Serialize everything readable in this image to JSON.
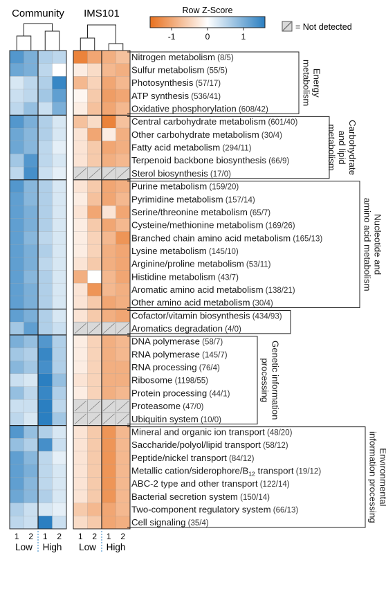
{
  "chart_data": {
    "type": "heatmap",
    "panels": [
      {
        "title": "Community",
        "columns": [
          "1",
          "2",
          "1",
          "2"
        ]
      },
      {
        "title": "IMS101",
        "columns": [
          "1",
          "2",
          "1",
          "2"
        ]
      }
    ],
    "group_labels": [
      "Low",
      "High"
    ],
    "legend": {
      "title": "Row Z-Score",
      "ticks": [
        "-1",
        "0",
        "1"
      ],
      "not_detected_label": "= Not detected",
      "low_color": "#e8711f",
      "mid_color": "#ffffff",
      "high_color": "#2b7fc1"
    },
    "groups": [
      {
        "label_lines": [
          "Energy",
          "metabolism"
        ],
        "rows": [
          0,
          4
        ]
      },
      {
        "label_lines": [
          "Carbohydrate",
          "and lipid",
          "metabolism"
        ],
        "rows": [
          5,
          9
        ]
      },
      {
        "label_lines": [
          "Nucleotide and",
          "amino acid metabolism"
        ],
        "rows": [
          10,
          19
        ]
      },
      {
        "label_lines": [],
        "rows": [
          20,
          21
        ]
      },
      {
        "label_lines": [
          "Genetic information",
          "processing"
        ],
        "rows": [
          22,
          28
        ]
      },
      {
        "label_lines": [
          "Environmental",
          "information processing"
        ],
        "rows": [
          29,
          36
        ]
      }
    ],
    "rows": [
      {
        "name": "Nitrogen metabolism",
        "count": "(8/5)",
        "community": [
          1.3,
          1.0,
          0.6,
          0.5
        ],
        "ims101": [
          -1.4,
          -1.0,
          -0.9,
          -0.7
        ]
      },
      {
        "name": "Sulfur metabolism",
        "count": "(55/5)",
        "community": [
          1.1,
          1.0,
          0.5,
          0.0
        ],
        "ims101": [
          -0.2,
          -0.4,
          -0.8,
          -0.9
        ]
      },
      {
        "name": "Photosynthesis",
        "count": "(57/17)",
        "community": [
          0.3,
          0.5,
          0.6,
          1.5
        ],
        "ims101": [
          -0.8,
          -0.5,
          -1.0,
          -0.8
        ]
      },
      {
        "name": "ATP synthesis",
        "count": "(536/41)",
        "community": [
          0.4,
          0.5,
          0.7,
          1.2
        ],
        "ims101": [
          -0.1,
          -0.6,
          -1.1,
          -1.0
        ]
      },
      {
        "name": "Oxidative phosphorylation",
        "count": "(608/42)",
        "community": [
          0.5,
          0.8,
          0.4,
          1.0
        ],
        "ims101": [
          -0.2,
          -0.7,
          -1.0,
          -0.8
        ]
      },
      {
        "name": "Central carbohydrate metabolism",
        "count": "(601/40)",
        "community": [
          1.3,
          1.0,
          0.6,
          0.3
        ],
        "ims101": [
          -0.7,
          -0.4,
          -1.4,
          -0.7
        ]
      },
      {
        "name": "Other carbohydrate metabolism",
        "count": "(30/4)",
        "community": [
          1.1,
          0.9,
          0.6,
          0.3
        ],
        "ims101": [
          -0.3,
          -1.0,
          -0.2,
          -0.9
        ]
      },
      {
        "name": "Fatty acid metabolism",
        "count": "(294/11)",
        "community": [
          1.1,
          0.9,
          0.5,
          0.2
        ],
        "ims101": [
          -0.3,
          -0.6,
          -1.0,
          -0.9
        ]
      },
      {
        "name": "Terpenoid backbone biosynthesis",
        "count": "(66/9)",
        "community": [
          0.7,
          1.3,
          0.5,
          0.3
        ],
        "ims101": [
          -0.3,
          -0.6,
          -0.9,
          -0.8
        ]
      },
      {
        "name": "Sterol biosynthesis",
        "count": "(17/0)",
        "community": [
          0.5,
          1.4,
          0.4,
          0.2
        ],
        "ims101": [
          null,
          null,
          null,
          null
        ]
      },
      {
        "name": "Purine metabolism",
        "count": "(159/20)",
        "community": [
          1.3,
          0.9,
          0.6,
          0.3
        ],
        "ims101": [
          -0.3,
          -0.6,
          -1.0,
          -0.9
        ]
      },
      {
        "name": "Pyrimidine metabolism",
        "count": "(157/14)",
        "community": [
          1.2,
          0.9,
          0.6,
          0.3
        ],
        "ims101": [
          -0.2,
          -0.7,
          -1.0,
          -0.8
        ]
      },
      {
        "name": "Serine/threonine metabolism",
        "count": "(65/7)",
        "community": [
          1.2,
          1.0,
          0.6,
          0.3
        ],
        "ims101": [
          -0.3,
          -1.0,
          -0.3,
          -1.0
        ]
      },
      {
        "name": "Cysteine/methionine metabolism",
        "count": "(169/26)",
        "community": [
          1.2,
          1.0,
          0.6,
          0.3
        ],
        "ims101": [
          -0.2,
          -0.6,
          -1.0,
          -0.8
        ]
      },
      {
        "name": "Branched chain amino acid metabolism",
        "count": "(165/13)",
        "community": [
          1.2,
          0.9,
          0.5,
          0.3
        ],
        "ims101": [
          -0.2,
          -0.5,
          -0.8,
          -1.2
        ]
      },
      {
        "name": "Lysine metabolism",
        "count": "(145/10)",
        "community": [
          1.2,
          1.0,
          0.6,
          0.3
        ],
        "ims101": [
          -0.2,
          -0.5,
          -0.9,
          -1.0
        ]
      },
      {
        "name": "Arginine/proline metabolism",
        "count": "(53/11)",
        "community": [
          1.2,
          1.0,
          0.5,
          0.3
        ],
        "ims101": [
          -0.3,
          -0.6,
          -0.9,
          -1.0
        ]
      },
      {
        "name": "Histidine metabolism",
        "count": "(43/7)",
        "community": [
          1.2,
          0.9,
          0.6,
          0.3
        ],
        "ims101": [
          -0.9,
          0.0,
          -0.8,
          -1.0
        ]
      },
      {
        "name": "Aromatic amino acid metabolism",
        "count": "(138/21)",
        "community": [
          1.2,
          1.0,
          0.6,
          0.3
        ],
        "ims101": [
          -0.3,
          -1.2,
          -0.8,
          -0.9
        ]
      },
      {
        "name": "Other amino acid metabolism",
        "count": "(30/4)",
        "community": [
          1.2,
          1.0,
          0.6,
          0.3
        ],
        "ims101": [
          -0.3,
          -0.6,
          -1.0,
          -0.9
        ]
      },
      {
        "name": "Cofactor/vitamin biosynthesis",
        "count": "(434/93)",
        "community": [
          1.2,
          1.0,
          0.6,
          0.3
        ],
        "ims101": [
          -0.3,
          -0.6,
          -0.9,
          -1.0
        ]
      },
      {
        "name": "Aromatics degradation",
        "count": "(4/0)",
        "community": [
          0.7,
          1.2,
          0.6,
          0.4
        ],
        "ims101": [
          null,
          null,
          null,
          null
        ]
      },
      {
        "name": "DNA polymerase",
        "count": "(58/7)",
        "community": [
          1.0,
          0.8,
          1.3,
          0.6
        ],
        "ims101": [
          -0.2,
          -0.5,
          -0.9,
          -0.8
        ]
      },
      {
        "name": "RNA polymerase",
        "count": "(145/7)",
        "community": [
          0.7,
          0.6,
          1.5,
          0.6
        ],
        "ims101": [
          -0.2,
          -0.5,
          -0.9,
          -0.8
        ]
      },
      {
        "name": "RNA processing",
        "count": "(76/4)",
        "community": [
          0.9,
          0.7,
          1.4,
          0.6
        ],
        "ims101": [
          -0.2,
          -0.5,
          -0.9,
          -0.9
        ]
      },
      {
        "name": "Ribosome",
        "count": "(1198/55)",
        "community": [
          0.4,
          0.3,
          1.6,
          0.8
        ],
        "ims101": [
          -0.3,
          -0.5,
          -0.9,
          -0.9
        ]
      },
      {
        "name": "Protein processing",
        "count": "(44/1)",
        "community": [
          0.8,
          0.5,
          1.5,
          0.6
        ],
        "ims101": [
          -0.2,
          -0.5,
          -0.9,
          -0.8
        ]
      },
      {
        "name": "Proteasome",
        "count": "(47/0)",
        "community": [
          0.4,
          0.4,
          1.6,
          0.5
        ],
        "ims101": [
          null,
          null,
          null,
          null
        ]
      },
      {
        "name": "Ubiquitin system",
        "count": "(10/0)",
        "community": [
          0.5,
          0.3,
          1.6,
          0.7
        ],
        "ims101": [
          null,
          null,
          null,
          null
        ]
      },
      {
        "name": "Mineral and organic ion transport",
        "count": "(48/20)",
        "community": [
          1.3,
          0.8,
          0.6,
          0.3
        ],
        "ims101": [
          -0.3,
          -0.6,
          -1.2,
          -0.8
        ]
      },
      {
        "name": "Saccharide/polyol/lipid transport",
        "count": "(58/12)",
        "community": [
          0.8,
          0.6,
          1.4,
          0.4
        ],
        "ims101": [
          -0.3,
          -0.6,
          -1.2,
          -0.8
        ]
      },
      {
        "name": "Peptide/nickel transport",
        "count": "(84/12)",
        "community": [
          1.2,
          0.9,
          0.5,
          0.2
        ],
        "ims101": [
          -0.3,
          -0.6,
          -1.2,
          -0.8
        ]
      },
      {
        "name": "Metallic cation/siderophore/B",
        "name_sub": "12",
        "name_suffix": " transport",
        "count": "(19/12)",
        "community": [
          1.2,
          1.0,
          0.5,
          0.3
        ],
        "ims101": [
          -0.3,
          -0.6,
          -1.2,
          -0.8
        ]
      },
      {
        "name": "ABC-2 type and other transport",
        "count": "(122/14)",
        "community": [
          1.2,
          0.9,
          0.5,
          0.3
        ],
        "ims101": [
          -0.3,
          -0.6,
          -1.2,
          -0.8
        ]
      },
      {
        "name": "Bacterial secretion system",
        "count": "(150/14)",
        "community": [
          1.1,
          0.9,
          0.6,
          0.3
        ],
        "ims101": [
          -0.3,
          -0.6,
          -1.2,
          -0.8
        ]
      },
      {
        "name": "Two-component regulatory system",
        "count": "(66/13)",
        "community": [
          0.6,
          0.4,
          0.3,
          0.2
        ],
        "ims101": [
          -0.6,
          -0.8,
          -1.0,
          -0.8
        ]
      },
      {
        "name": "Cell signaling",
        "count": "(35/4)",
        "community": [
          0.5,
          0.4,
          1.6,
          0.4
        ],
        "ims101": [
          -0.4,
          -0.6,
          -1.0,
          -0.9
        ]
      }
    ]
  }
}
